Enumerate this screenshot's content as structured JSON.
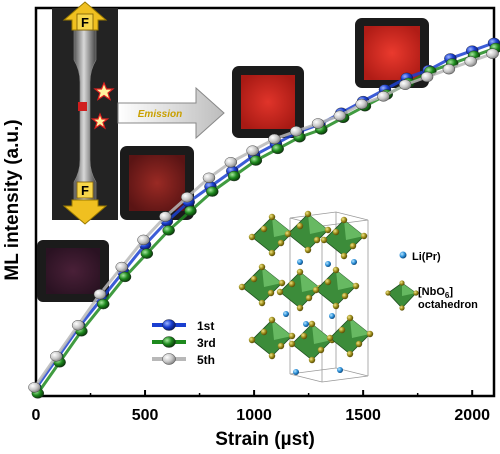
{
  "chart_data": {
    "type": "scatter",
    "title": "",
    "xlabel": "Strain (µst)",
    "ylabel": "ML intensity (a.u.)",
    "xlim": [
      0,
      2100
    ],
    "ylim": [
      0,
      1.0
    ],
    "x_ticks": [
      "0",
      "500",
      "1000",
      "1500",
      "2000"
    ],
    "y_ticks": [],
    "grid": false,
    "legend_position": "bottom-left",
    "series": [
      {
        "name": "1st",
        "color": "#1a3fd0",
        "x": [
          0,
          100,
          200,
          300,
          400,
          500,
          600,
          700,
          800,
          900,
          1000,
          1100,
          1200,
          1300,
          1400,
          1500,
          1600,
          1700,
          1800,
          1900,
          2000,
          2100
        ],
        "y": [
          0.02,
          0.1,
          0.18,
          0.25,
          0.32,
          0.39,
          0.45,
          0.5,
          0.54,
          0.58,
          0.62,
          0.65,
          0.68,
          0.7,
          0.73,
          0.76,
          0.79,
          0.82,
          0.84,
          0.87,
          0.89,
          0.91
        ]
      },
      {
        "name": "3rd",
        "color": "#1e8a1e",
        "x": [
          0,
          100,
          200,
          300,
          400,
          500,
          600,
          700,
          800,
          900,
          1000,
          1100,
          1200,
          1300,
          1400,
          1500,
          1600,
          1700,
          1800,
          1900,
          2000,
          2100
        ],
        "y": [
          0.01,
          0.09,
          0.17,
          0.24,
          0.31,
          0.37,
          0.43,
          0.48,
          0.53,
          0.57,
          0.61,
          0.64,
          0.67,
          0.69,
          0.72,
          0.75,
          0.78,
          0.81,
          0.84,
          0.86,
          0.88,
          0.9
        ]
      },
      {
        "name": "5th",
        "color": "#b8b8b8",
        "x": [
          0,
          100,
          200,
          300,
          400,
          500,
          600,
          700,
          800,
          900,
          1000,
          1100,
          1200,
          1300,
          1400,
          1500,
          1600,
          1700,
          1800,
          1900,
          2000,
          2100
        ],
        "y": [
          0.02,
          0.1,
          0.18,
          0.26,
          0.33,
          0.4,
          0.46,
          0.51,
          0.56,
          0.6,
          0.63,
          0.66,
          0.68,
          0.7,
          0.72,
          0.75,
          0.77,
          0.8,
          0.82,
          0.84,
          0.86,
          0.88
        ]
      }
    ],
    "annotations": {
      "force_label_top": "F",
      "force_label_bottom": "F",
      "emission_label": "Emission",
      "structure_legend": {
        "ion_label": "Li(Pr)",
        "octahedron_line1_prefix": "[NbO",
        "octahedron_line1_sub": "6",
        "octahedron_line1_suffix": "]",
        "octahedron_line2": "octahedron"
      }
    },
    "inset_images": [
      {
        "name": "emission-square-dark",
        "strain": 50,
        "color": "#3a1a2a"
      },
      {
        "name": "emission-square-weak",
        "strain": 600,
        "color": "#7a1e1e"
      },
      {
        "name": "emission-square-medium",
        "strain": 1000,
        "color": "#c8231f"
      },
      {
        "name": "emission-square-bright",
        "strain": 1600,
        "color": "#d42a22"
      }
    ]
  }
}
